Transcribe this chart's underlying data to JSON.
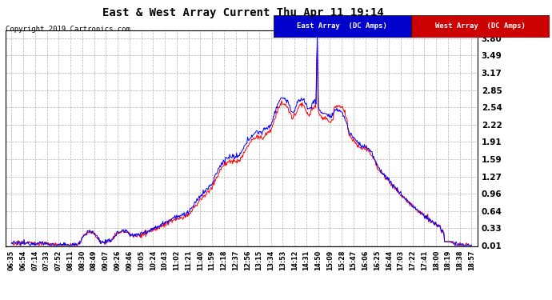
{
  "title": "East & West Array Current Thu Apr 11 19:14",
  "copyright": "Copyright 2019 Cartronics.com",
  "legend_east": "East Array  (DC Amps)",
  "legend_west": "West Array  (DC Amps)",
  "east_color": "#0000ff",
  "west_color": "#ff0000",
  "legend_east_bg": "#0000cc",
  "legend_west_bg": "#cc0000",
  "bg_color": "#ffffff",
  "plot_bg": "#ffffff",
  "grid_color": "#aaaaaa",
  "yticks": [
    0.01,
    0.33,
    0.64,
    0.96,
    1.27,
    1.59,
    1.91,
    2.22,
    2.54,
    2.85,
    3.17,
    3.49,
    3.8
  ],
  "ylim": [
    0.0,
    3.95
  ],
  "xtick_labels": [
    "06:35",
    "06:54",
    "07:14",
    "07:33",
    "07:52",
    "08:11",
    "08:30",
    "08:49",
    "09:07",
    "09:26",
    "09:46",
    "10:05",
    "10:24",
    "10:43",
    "11:02",
    "11:21",
    "11:40",
    "11:59",
    "12:18",
    "12:37",
    "12:56",
    "13:15",
    "13:34",
    "13:53",
    "14:12",
    "14:31",
    "14:50",
    "15:09",
    "15:28",
    "15:47",
    "16:06",
    "16:25",
    "16:44",
    "17:03",
    "17:22",
    "17:41",
    "18:00",
    "18:19",
    "18:38",
    "18:57"
  ]
}
